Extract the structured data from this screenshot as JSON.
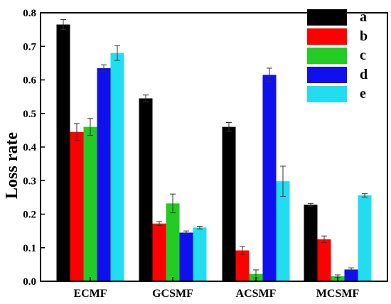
{
  "chart_data": {
    "type": "bar",
    "title": "",
    "xlabel": "",
    "ylabel": "Loss rate",
    "ylim": [
      0,
      0.8
    ],
    "yticks": [
      "0.0",
      "0.1",
      "0.2",
      "0.3",
      "0.4",
      "0.5",
      "0.6",
      "0.7",
      "0.8"
    ],
    "categories": [
      "ECMF",
      "GCSMF",
      "ACSMF",
      "MCSMF"
    ],
    "legend_position": "top-right",
    "series": [
      {
        "name": "a",
        "color": "#000000",
        "values": [
          0.765,
          0.545,
          0.46,
          0.228
        ],
        "errors": [
          0.015,
          0.01,
          0.013,
          0.004
        ]
      },
      {
        "name": "b",
        "color": "#ff0000",
        "values": [
          0.445,
          0.172,
          0.092,
          0.125
        ],
        "errors": [
          0.025,
          0.006,
          0.012,
          0.01
        ]
      },
      {
        "name": "c",
        "color": "#22cc22",
        "values": [
          0.46,
          0.232,
          0.022,
          0.015
        ],
        "errors": [
          0.025,
          0.028,
          0.012,
          0.004
        ]
      },
      {
        "name": "d",
        "color": "#1010ee",
        "values": [
          0.635,
          0.145,
          0.615,
          0.035
        ],
        "errors": [
          0.01,
          0.005,
          0.02,
          0.005
        ]
      },
      {
        "name": "e",
        "color": "#22ddf0",
        "values": [
          0.68,
          0.16,
          0.298,
          0.256
        ],
        "errors": [
          0.022,
          0.004,
          0.045,
          0.005
        ]
      }
    ]
  }
}
